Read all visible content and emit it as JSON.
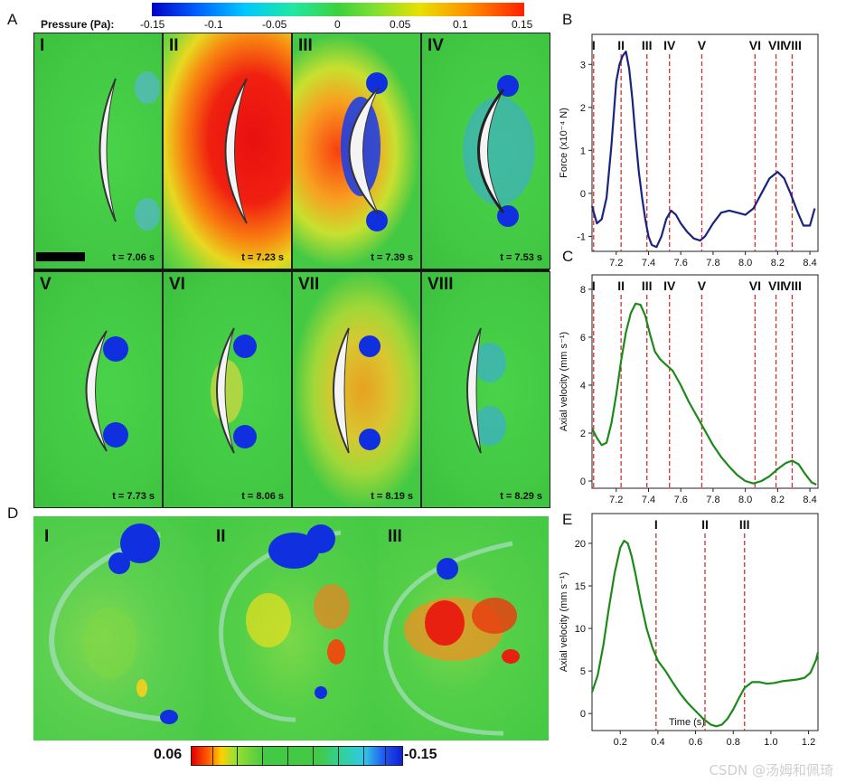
{
  "panel_letters": {
    "A": "A",
    "B": "B",
    "C": "C",
    "D": "D",
    "E": "E"
  },
  "colorbar_top": {
    "label": "Pressure (Pa):",
    "ticks": [
      "-0.15",
      "-0.1",
      "-0.05",
      "0",
      "0.05",
      "0.1",
      "0.15"
    ]
  },
  "tiles": [
    {
      "roman": "I",
      "time": "t = 7.06 s"
    },
    {
      "roman": "II",
      "time": "t = 7.23 s"
    },
    {
      "roman": "III",
      "time": "t = 7.39 s"
    },
    {
      "roman": "IV",
      "time": "t = 7.53 s"
    },
    {
      "roman": "V",
      "time": "t = 7.73 s"
    },
    {
      "roman": "VI",
      "time": "t = 8.06 s"
    },
    {
      "roman": "VII",
      "time": "t = 8.19 s"
    },
    {
      "roman": "VIII",
      "time": "t = 8.29 s"
    }
  ],
  "d_panels": [
    {
      "roman": "I"
    },
    {
      "roman": "II"
    },
    {
      "roman": "III"
    }
  ],
  "colorbar_bottom": {
    "left": "0.06",
    "right": "-0.15"
  },
  "watermark": "CSDN @汤姆和佩琦",
  "chart_data": [
    {
      "id": "B",
      "type": "line",
      "ylabel": "Force (x10⁻⁴ N)",
      "xlabel": "",
      "xlim": [
        7.05,
        8.45
      ],
      "ylim": [
        -1.35,
        3.7
      ],
      "xticks": [
        7.2,
        7.4,
        7.6,
        7.8,
        8.0,
        8.2,
        8.4
      ],
      "xtick_labels": [
        "7.2",
        "7.4",
        "7.6",
        "7.8",
        "8.0",
        "8.2",
        "8.4"
      ],
      "yticks": [
        -1,
        0,
        1,
        2,
        3
      ],
      "ytick_labels": [
        "-1",
        "0",
        "1",
        "2",
        "3"
      ],
      "color": "#1a237e",
      "markers": [
        {
          "label": "I",
          "x": 7.06
        },
        {
          "label": "II",
          "x": 7.23
        },
        {
          "label": "III",
          "x": 7.39
        },
        {
          "label": "IV",
          "x": 7.53
        },
        {
          "label": "V",
          "x": 7.73
        },
        {
          "label": "VI",
          "x": 8.06
        },
        {
          "label": "VII",
          "x": 8.19
        },
        {
          "label": "VIII",
          "x": 8.29
        }
      ],
      "marker_color": "#d32f2f",
      "x": [
        7.05,
        7.08,
        7.11,
        7.14,
        7.17,
        7.2,
        7.22,
        7.24,
        7.26,
        7.28,
        7.3,
        7.32,
        7.34,
        7.36,
        7.38,
        7.4,
        7.42,
        7.45,
        7.48,
        7.51,
        7.54,
        7.57,
        7.6,
        7.64,
        7.68,
        7.72,
        7.75,
        7.8,
        7.85,
        7.9,
        7.95,
        8.0,
        8.05,
        8.1,
        8.15,
        8.2,
        8.24,
        8.28,
        8.32,
        8.36,
        8.4,
        8.43
      ],
      "y": [
        -0.3,
        -0.7,
        -0.6,
        -0.1,
        1.1,
        2.6,
        3.0,
        3.2,
        3.3,
        2.9,
        2.2,
        1.3,
        0.5,
        -0.1,
        -0.6,
        -1.0,
        -1.2,
        -1.25,
        -1.0,
        -0.6,
        -0.4,
        -0.5,
        -0.7,
        -0.9,
        -1.05,
        -1.1,
        -1.0,
        -0.7,
        -0.45,
        -0.4,
        -0.45,
        -0.5,
        -0.35,
        0.0,
        0.35,
        0.5,
        0.35,
        0.0,
        -0.4,
        -0.75,
        -0.75,
        -0.35
      ]
    },
    {
      "id": "C",
      "type": "line",
      "ylabel": "Axial velocity (mm s⁻¹)",
      "xlabel": "",
      "xlim": [
        7.05,
        8.45
      ],
      "ylim": [
        -0.3,
        8.6
      ],
      "xticks": [
        7.2,
        7.4,
        7.6,
        7.8,
        8.0,
        8.2,
        8.4
      ],
      "xtick_labels": [
        "7.2",
        "7.4",
        "7.6",
        "7.8",
        "8.0",
        "8.2",
        "8.4"
      ],
      "yticks": [
        0,
        2,
        4,
        6,
        8
      ],
      "ytick_labels": [
        "0",
        "2",
        "4",
        "6",
        "8"
      ],
      "color": "#1b8a1b",
      "markers": [
        {
          "label": "I",
          "x": 7.06
        },
        {
          "label": "II",
          "x": 7.23
        },
        {
          "label": "III",
          "x": 7.39
        },
        {
          "label": "IV",
          "x": 7.53
        },
        {
          "label": "V",
          "x": 7.73
        },
        {
          "label": "VI",
          "x": 8.06
        },
        {
          "label": "VII",
          "x": 8.19
        },
        {
          "label": "VIII",
          "x": 8.29
        }
      ],
      "marker_color": "#d32f2f",
      "x": [
        7.05,
        7.08,
        7.11,
        7.14,
        7.17,
        7.2,
        7.23,
        7.26,
        7.29,
        7.32,
        7.35,
        7.38,
        7.41,
        7.44,
        7.47,
        7.5,
        7.55,
        7.6,
        7.65,
        7.7,
        7.75,
        7.8,
        7.85,
        7.9,
        7.95,
        8.0,
        8.05,
        8.1,
        8.15,
        8.2,
        8.25,
        8.29,
        8.33,
        8.37,
        8.41,
        8.44
      ],
      "y": [
        2.2,
        1.8,
        1.5,
        1.6,
        2.4,
        3.6,
        5.0,
        6.2,
        7.0,
        7.4,
        7.35,
        6.9,
        6.1,
        5.4,
        5.1,
        4.9,
        4.6,
        4.0,
        3.3,
        2.7,
        2.1,
        1.5,
        1.0,
        0.6,
        0.25,
        0.0,
        -0.1,
        0.0,
        0.2,
        0.5,
        0.75,
        0.85,
        0.7,
        0.3,
        -0.05,
        -0.15
      ]
    },
    {
      "id": "E",
      "type": "line",
      "ylabel": "Axial velocity (mm s⁻¹)",
      "xlabel": "Time (s)",
      "xlim": [
        0.05,
        1.25
      ],
      "ylim": [
        -2.0,
        23.5
      ],
      "xticks": [
        0.2,
        0.4,
        0.6,
        0.8,
        1.0,
        1.2
      ],
      "xtick_labels": [
        "0.2",
        "0.4",
        "0.6",
        "0.8",
        "1.0",
        "1.2"
      ],
      "yticks": [
        0,
        5,
        10,
        15,
        20
      ],
      "ytick_labels": [
        "0",
        "5",
        "10",
        "15",
        "20"
      ],
      "color": "#1b8a1b",
      "markers": [
        {
          "label": "I",
          "x": 0.39
        },
        {
          "label": "II",
          "x": 0.65
        },
        {
          "label": "III",
          "x": 0.86
        }
      ],
      "marker_color": "#d32f2f",
      "x": [
        0.05,
        0.08,
        0.11,
        0.14,
        0.17,
        0.2,
        0.22,
        0.24,
        0.26,
        0.28,
        0.31,
        0.34,
        0.37,
        0.4,
        0.44,
        0.48,
        0.52,
        0.56,
        0.6,
        0.64,
        0.68,
        0.71,
        0.74,
        0.77,
        0.8,
        0.83,
        0.86,
        0.9,
        0.94,
        0.98,
        1.02,
        1.06,
        1.1,
        1.14,
        1.18,
        1.21,
        1.24,
        1.25
      ],
      "y": [
        2.5,
        4.5,
        8.0,
        12.5,
        16.5,
        19.5,
        20.3,
        20.0,
        18.5,
        16.5,
        13.0,
        10.0,
        7.8,
        6.2,
        5.0,
        3.6,
        2.3,
        1.2,
        0.3,
        -0.6,
        -1.3,
        -1.5,
        -1.3,
        -0.6,
        0.5,
        1.8,
        3.0,
        3.7,
        3.7,
        3.5,
        3.6,
        3.8,
        3.9,
        4.0,
        4.2,
        4.8,
        6.3,
        7.2
      ]
    }
  ]
}
